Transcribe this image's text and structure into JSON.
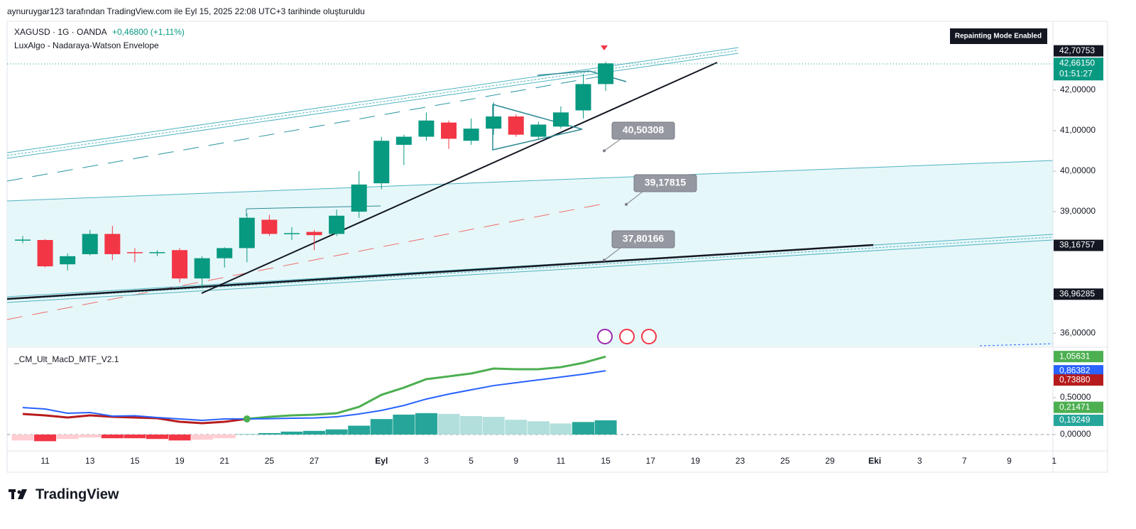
{
  "header": {
    "caption": "aynuruygar123 tarafından TradingView.com ile Eyl 15, 2025 22:08 UTC+3 tarihinde oluşturuldu",
    "logo": "TradingView"
  },
  "chart_data": [
    {
      "type": "candlestick",
      "title": "XAGUSD · 1G · OANDA",
      "change": "+0,46800 (+1,11%)",
      "indicator": "LuxAlgo - Nadaraya-Watson Envelope",
      "badge": "Repainting Mode Enabled",
      "categories": [
        null,
        "11",
        null,
        "13",
        null,
        "15",
        null,
        "19",
        null,
        "21",
        null,
        "25",
        null,
        "27",
        null,
        null,
        "Eyl",
        null,
        "3",
        null,
        "5",
        null,
        "9",
        null,
        "11",
        null,
        "15",
        null,
        "17",
        null,
        "19",
        null,
        "23",
        null,
        "25",
        null,
        "29",
        null,
        "Eki",
        null,
        "3",
        null,
        "7",
        null,
        "9",
        null,
        "1"
      ],
      "open": [
        38.3,
        38.3,
        37.7,
        37.95,
        38.45,
        38.0,
        37.99,
        38.05,
        37.35,
        37.85,
        38.1,
        38.8,
        38.45,
        38.5,
        38.45,
        39.0,
        39.7,
        40.65,
        40.85,
        41.2,
        40.75,
        41.05,
        41.35,
        40.85,
        41.1,
        41.5,
        42.15,
        null,
        null,
        null,
        null,
        null,
        null,
        null,
        null,
        null,
        null,
        null,
        null,
        null,
        null,
        null,
        null,
        null,
        null,
        null,
        null
      ],
      "high": [
        38.4,
        38.32,
        37.97,
        38.55,
        38.65,
        38.1,
        38.05,
        38.1,
        37.9,
        38.12,
        38.95,
        38.92,
        38.62,
        38.55,
        39.05,
        40.0,
        40.85,
        40.9,
        41.45,
        41.25,
        41.3,
        41.7,
        41.4,
        41.22,
        41.6,
        42.4,
        42.7,
        null,
        null,
        null,
        null,
        null,
        null,
        null,
        null,
        null,
        null,
        null,
        null,
        null,
        null,
        null,
        null,
        null,
        null,
        null,
        null
      ],
      "low": [
        38.22,
        37.62,
        37.55,
        37.92,
        37.8,
        37.75,
        37.9,
        37.25,
        37.1,
        37.62,
        37.75,
        38.4,
        38.3,
        38.05,
        38.4,
        38.85,
        39.55,
        40.15,
        40.75,
        40.55,
        40.65,
        40.9,
        40.85,
        40.8,
        41.05,
        41.3,
        41.98,
        null,
        null,
        null,
        null,
        null,
        null,
        null,
        null,
        null,
        null,
        null,
        null,
        null,
        null,
        null,
        null,
        null,
        null,
        null,
        null
      ],
      "close": [
        38.31,
        37.65,
        37.9,
        38.45,
        37.95,
        37.99,
        38.0,
        37.35,
        37.85,
        38.1,
        38.85,
        38.45,
        38.47,
        38.42,
        38.9,
        39.67,
        40.75,
        40.85,
        41.25,
        40.8,
        41.05,
        41.35,
        40.9,
        41.15,
        41.45,
        42.15,
        42.6615,
        null,
        null,
        null,
        null,
        null,
        null,
        null,
        null,
        null,
        null,
        null,
        null,
        null,
        null,
        null,
        null,
        null,
        null,
        null,
        null
      ],
      "up_color": "#089981",
      "down_color": "#f23645",
      "ylim": [
        35.67,
        43.7
      ],
      "yticks": [
        {
          "value": 36,
          "label": "36,00000"
        },
        {
          "value": 39,
          "label": "39,00000"
        },
        {
          "value": 40,
          "label": "40,00000"
        },
        {
          "value": 41,
          "label": "41,00000"
        },
        {
          "value": 42,
          "label": "42,00000"
        }
      ],
      "axis_labels": [
        {
          "value": 42.70753,
          "label": "42,70753",
          "color": "#131722"
        },
        {
          "value": 42.6615,
          "label": "42,66150",
          "color": "#089981"
        },
        {
          "value": 38.16757,
          "label": "38,16757",
          "color": "#131722"
        },
        {
          "value": 36.96285,
          "label": "36,96285",
          "color": "#131722"
        }
      ],
      "countdown": "01:51:27",
      "callouts": [
        {
          "value": 40.50308,
          "label": "40,50308"
        },
        {
          "value": 39.17815,
          "label": "39,17815"
        },
        {
          "value": 37.80166,
          "label": "37,80166"
        }
      ]
    },
    {
      "type": "macd",
      "title": "_CM_Ult_MacD_MTF_V2.1",
      "series": [
        {
          "color": "#b71c1c",
          "values": [
            0.279,
            0.26,
            0.231,
            0.26,
            0.24,
            0.231,
            0.221,
            0.173,
            0.154,
            0.173,
            0.212,
            null,
            null,
            null,
            null,
            null,
            null,
            null,
            null,
            null,
            null,
            null,
            null,
            null,
            null,
            null,
            null
          ]
        },
        {
          "color": "#4caf50",
          "values": [
            null,
            null,
            null,
            null,
            null,
            null,
            null,
            null,
            null,
            null,
            0.212,
            0.24,
            0.26,
            0.269,
            0.288,
            0.375,
            0.538,
            0.635,
            0.75,
            0.788,
            0.827,
            0.894,
            0.885,
            0.885,
            0.913,
            0.971,
            1.05631
          ]
        },
        {
          "color": "#2962ff",
          "values": [
            0.365,
            0.346,
            0.288,
            0.298,
            0.25,
            0.255,
            0.231,
            0.212,
            0.192,
            0.212,
            0.212,
            0.215,
            0.221,
            0.225,
            0.24,
            0.279,
            0.327,
            0.394,
            0.481,
            0.548,
            0.606,
            0.663,
            0.702,
            0.74,
            0.779,
            0.817,
            0.86382
          ]
        }
      ],
      "histogram": [
        -0.08,
        -0.09,
        -0.06,
        -0.04,
        -0.05,
        -0.05,
        -0.06,
        -0.08,
        -0.07,
        -0.05,
        0.005,
        0.02,
        0.04,
        0.05,
        0.07,
        0.12,
        0.21,
        0.27,
        0.29,
        0.28,
        0.25,
        0.24,
        0.2,
        0.18,
        0.15,
        0.17,
        0.19249
      ],
      "histogram_colors": [
        "#ffcdd2",
        "#f23645",
        "#ffcdd2",
        "#ffcdd2",
        "#f23645",
        "#f23645",
        "#f23645",
        "#f23645",
        "#ffcdd2",
        "#ffcdd2",
        "#26a69a",
        "#26a69a",
        "#26a69a",
        "#26a69a",
        "#26a69a",
        "#26a69a",
        "#26a69a",
        "#26a69a",
        "#26a69a",
        "#b2dfdb",
        "#b2dfdb",
        "#b2dfdb",
        "#b2dfdb",
        "#b2dfdb",
        "#b2dfdb",
        "#26a69a",
        "#26a69a"
      ],
      "ylim": [
        -0.154,
        1.154
      ],
      "yticks": [
        {
          "value": 0,
          "label": "0,00000"
        },
        {
          "value": 0.5,
          "label": "0,50000"
        }
      ],
      "axis_labels": [
        {
          "value": 1.05631,
          "label": "1,05631",
          "color": "#4caf50"
        },
        {
          "value": 0.86382,
          "label": "0,86382",
          "color": "#2962ff"
        },
        {
          "value": 0.7388,
          "label": "0,73880",
          "color": "#b71c1c"
        },
        {
          "value": 0.21471,
          "label": "0,21471",
          "color": "#4caf50"
        },
        {
          "value": 0.19249,
          "label": "0,19249",
          "color": "#26a69a"
        }
      ]
    }
  ]
}
